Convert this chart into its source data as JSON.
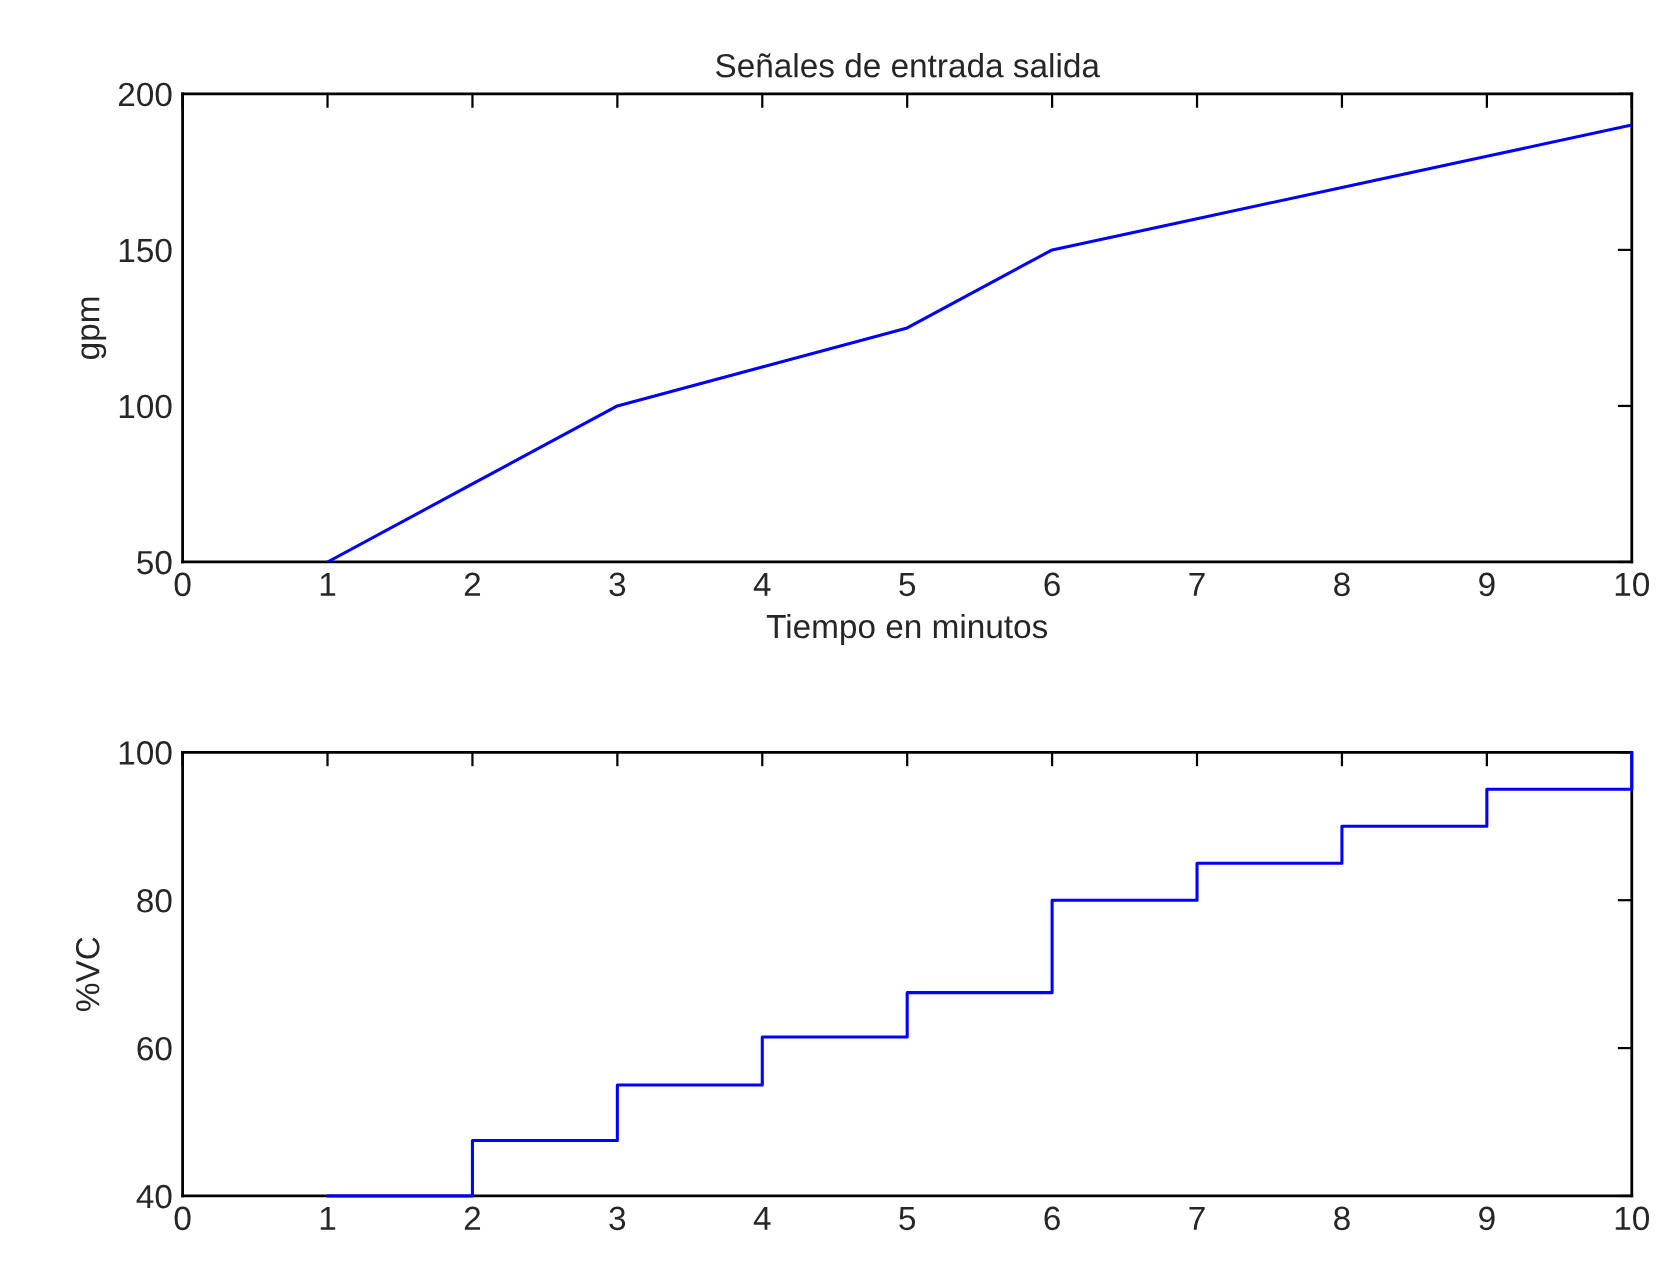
{
  "chart_data": [
    {
      "type": "line",
      "title": "Señales de entrada salida",
      "xlabel": "Tiempo en minutos",
      "ylabel": "gpm",
      "x": [
        1,
        2,
        3,
        4,
        5,
        6,
        7,
        8,
        9,
        10
      ],
      "series": [
        {
          "color": "#0000ff",
          "values": [
            50,
            75,
            100,
            112.5,
            125,
            150,
            160,
            170,
            180,
            190
          ]
        }
      ],
      "xlim": [
        0,
        10
      ],
      "ylim": [
        50,
        200
      ],
      "xticks": [
        0,
        1,
        2,
        3,
        4,
        5,
        6,
        7,
        8,
        9,
        10
      ],
      "yticks": [
        50,
        100,
        150,
        200
      ],
      "grid": false,
      "legend": false
    },
    {
      "type": "step",
      "ylabel": "%VC",
      "x": [
        1,
        2,
        3,
        4,
        5,
        6,
        7,
        8,
        9,
        10
      ],
      "series": [
        {
          "color": "#0000ff",
          "values": [
            40,
            47.5,
            55,
            61.5,
            67.5,
            80,
            85,
            90,
            95,
            100
          ]
        }
      ],
      "xlim": [
        0,
        10
      ],
      "ylim": [
        40,
        100
      ],
      "xticks": [
        0,
        1,
        2,
        3,
        4,
        5,
        6,
        7,
        8,
        9,
        10
      ],
      "yticks": [
        40,
        60,
        80,
        100
      ],
      "grid": false,
      "legend": false
    }
  ]
}
